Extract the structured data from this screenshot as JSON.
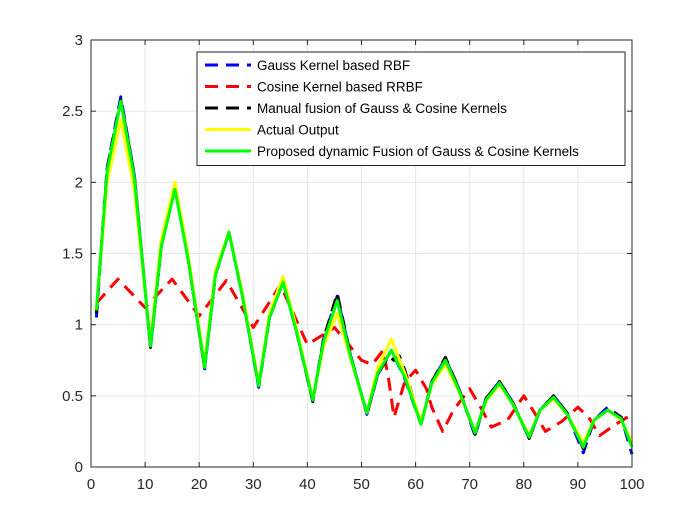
{
  "chart_data": {
    "type": "line",
    "title": "",
    "xlabel": "",
    "ylabel": "",
    "xlim": [
      0,
      100
    ],
    "ylim": [
      0,
      3
    ],
    "grid": true,
    "legend_position": "top-right",
    "x_ticks": [
      0,
      10,
      20,
      30,
      40,
      50,
      60,
      70,
      80,
      90,
      100
    ],
    "y_ticks": [
      0,
      0.5,
      1,
      1.5,
      2,
      2.5,
      3
    ],
    "x_tick_labels": [
      "0",
      "10",
      "20",
      "30",
      "40",
      "50",
      "60",
      "70",
      "80",
      "90",
      "100"
    ],
    "y_tick_labels": [
      "0",
      "0.5",
      "1",
      "1.5",
      "2",
      "2.5",
      "3"
    ],
    "series": [
      {
        "name": "Gauss Kernel based RBF",
        "color": "#0000ff",
        "style": "dashed",
        "x": [
          1,
          3,
          5.5,
          8,
          11,
          13,
          15.5,
          18,
          21,
          23,
          25.5,
          28,
          31,
          33,
          35.5,
          38,
          41,
          43,
          45.5,
          48,
          51,
          53,
          55.5,
          58,
          61,
          63,
          65.5,
          68,
          71,
          73,
          75.5,
          78,
          81,
          83,
          85.5,
          88,
          91,
          93,
          95.5,
          98,
          100
        ],
        "y": [
          1.05,
          2.1,
          2.6,
          2.05,
          0.84,
          1.55,
          1.97,
          1.45,
          0.69,
          1.35,
          1.65,
          1.2,
          0.56,
          1.05,
          1.3,
          0.95,
          0.46,
          0.9,
          1.2,
          0.78,
          0.37,
          0.65,
          0.82,
          0.62,
          0.3,
          0.6,
          0.76,
          0.55,
          0.22,
          0.48,
          0.6,
          0.45,
          0.2,
          0.4,
          0.5,
          0.38,
          0.1,
          0.33,
          0.42,
          0.35,
          0.09
        ]
      },
      {
        "name": "Cosine Kernel based RRBF",
        "color": "#ff0000",
        "style": "dashed",
        "x": [
          1,
          5,
          10,
          15,
          20,
          25,
          30,
          35,
          40,
          45,
          50,
          52,
          54,
          55,
          56,
          58,
          60,
          62,
          63,
          65,
          67,
          70,
          72,
          74,
          77,
          80,
          82,
          84,
          87,
          90,
          92,
          94,
          97,
          100
        ],
        "y": [
          1.15,
          1.32,
          1.12,
          1.32,
          1.06,
          1.31,
          0.98,
          1.28,
          0.86,
          0.98,
          0.75,
          0.72,
          0.82,
          0.62,
          0.35,
          0.6,
          0.68,
          0.55,
          0.42,
          0.25,
          0.4,
          0.55,
          0.42,
          0.28,
          0.33,
          0.5,
          0.38,
          0.25,
          0.32,
          0.42,
          0.35,
          0.22,
          0.3,
          0.37
        ]
      },
      {
        "name": "Manual fusion of Gauss & Cosine Kernels",
        "color": "#000000",
        "style": "dashed",
        "x": [
          1,
          3,
          5.5,
          8,
          11,
          13,
          15.5,
          18,
          21,
          23,
          25.5,
          28,
          31,
          33,
          35.5,
          38,
          41,
          43,
          45.5,
          48,
          51,
          53,
          55,
          56,
          57,
          58,
          61,
          63,
          65.5,
          68,
          71,
          73,
          75.5,
          78,
          81,
          83,
          85.5,
          88,
          91,
          93,
          95.5,
          98,
          100
        ],
        "y": [
          1.08,
          2.1,
          2.58,
          2.05,
          0.84,
          1.55,
          1.97,
          1.45,
          0.7,
          1.35,
          1.65,
          1.2,
          0.57,
          1.05,
          1.3,
          0.95,
          0.46,
          0.9,
          1.22,
          0.78,
          0.37,
          0.65,
          0.78,
          0.75,
          0.78,
          0.68,
          0.3,
          0.6,
          0.77,
          0.55,
          0.23,
          0.48,
          0.6,
          0.45,
          0.2,
          0.4,
          0.5,
          0.38,
          0.13,
          0.33,
          0.4,
          0.35,
          0.13
        ]
      },
      {
        "name": "Actual Output",
        "color": "#ffff00",
        "style": "solid",
        "x": [
          1,
          3,
          5.5,
          8,
          11,
          13,
          15.5,
          18,
          21,
          23,
          25.5,
          28,
          31,
          33,
          35.5,
          38,
          41,
          43,
          45.5,
          48,
          51,
          53,
          55.5,
          58,
          61,
          63,
          65.5,
          68,
          71,
          73,
          75.5,
          78,
          81,
          83,
          85.5,
          88,
          91,
          93,
          95.5,
          98,
          100
        ],
        "y": [
          1.12,
          2.0,
          2.44,
          1.95,
          0.88,
          1.6,
          2.0,
          1.48,
          0.72,
          1.38,
          1.65,
          1.22,
          0.58,
          1.08,
          1.34,
          0.97,
          0.48,
          0.85,
          1.08,
          0.76,
          0.38,
          0.7,
          0.9,
          0.66,
          0.32,
          0.58,
          0.72,
          0.53,
          0.25,
          0.46,
          0.58,
          0.44,
          0.22,
          0.4,
          0.48,
          0.37,
          0.17,
          0.33,
          0.4,
          0.33,
          0.17
        ]
      },
      {
        "name": "Proposed dynamic Fusion of Gauss & Cosine Kernels",
        "color": "#00ff00",
        "style": "solid",
        "x": [
          1,
          3,
          5.5,
          8,
          11,
          13,
          15.5,
          18,
          21,
          23,
          25.5,
          28,
          31,
          33,
          35.5,
          38,
          41,
          43,
          45.5,
          48,
          51,
          53,
          55.5,
          58,
          61,
          63,
          65.5,
          68,
          71,
          73,
          75.5,
          78,
          81,
          83,
          85.5,
          88,
          91,
          93,
          95.5,
          98,
          100
        ],
        "y": [
          1.1,
          2.08,
          2.57,
          2.03,
          0.85,
          1.55,
          1.95,
          1.45,
          0.7,
          1.35,
          1.65,
          1.2,
          0.57,
          1.05,
          1.3,
          0.95,
          0.47,
          0.88,
          1.17,
          0.77,
          0.38,
          0.66,
          0.82,
          0.63,
          0.3,
          0.59,
          0.75,
          0.54,
          0.24,
          0.47,
          0.59,
          0.44,
          0.21,
          0.4,
          0.49,
          0.37,
          0.14,
          0.33,
          0.4,
          0.34,
          0.14
        ]
      }
    ]
  }
}
